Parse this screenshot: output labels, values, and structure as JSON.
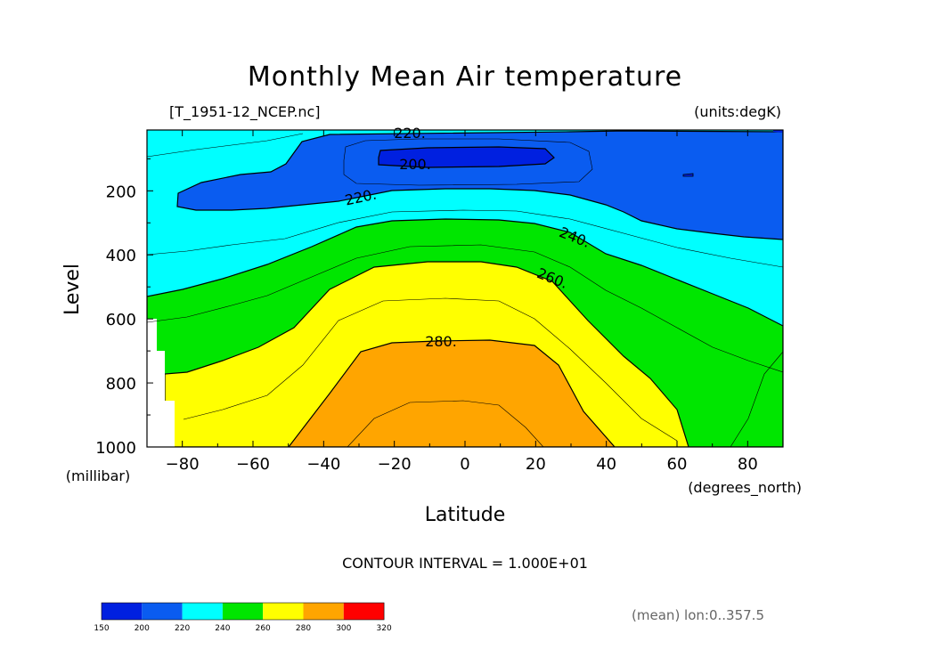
{
  "chart_data": {
    "type": "contour",
    "title": "Monthly Mean Air temperature",
    "file_label": "[T_1951-12_NCEP.nc]",
    "units_label": "(units:degK)",
    "xlabel": "Latitude",
    "xunits": "(degrees_north)",
    "ylabel": "Level",
    "yunits": "(millibar)",
    "xlim": [
      -90,
      90
    ],
    "ylim": [
      1000,
      10
    ],
    "x_ticks": [
      -80,
      -60,
      -40,
      -20,
      0,
      20,
      40,
      60,
      80
    ],
    "x_tick_labels": [
      "−80",
      "−60",
      "−40",
      "−20",
      "0",
      "20",
      "40",
      "60",
      "80"
    ],
    "y_ticks": [
      200,
      400,
      600,
      800,
      1000
    ],
    "y_tick_labels": [
      "200",
      "400",
      "600",
      "800",
      "1000"
    ],
    "contour_interval_text": "CONTOUR INTERVAL = 1.000E+01",
    "contour_interval": 10,
    "contour_labels": [
      "220.",
      "200.",
      "220.",
      "240.",
      "260.",
      "280."
    ],
    "color_levels": [
      150,
      200,
      220,
      240,
      260,
      280,
      300,
      320
    ],
    "color_level_labels": [
      "150",
      "200",
      "220",
      "240",
      "260",
      "280",
      "300",
      "320"
    ],
    "colors": [
      "#0020e0",
      "#0a5cf0",
      "#00ffff",
      "#00e600",
      "#ffff00",
      "#ffa500",
      "#ff0000"
    ],
    "contours": [
      {
        "level": 200,
        "points": [
          [
            -24,
            80
          ],
          [
            -20,
            70
          ],
          [
            -10,
            66
          ],
          [
            0,
            66
          ],
          [
            10,
            66
          ],
          [
            20,
            70
          ],
          [
            25,
            82
          ],
          [
            20,
            110
          ],
          [
            10,
            118
          ],
          [
            -10,
            118
          ],
          [
            -24,
            103
          ],
          [
            -24,
            80
          ]
        ]
      },
      {
        "level": 210,
        "points": [
          [
            -35,
            85
          ],
          [
            -33,
            55
          ],
          [
            -20,
            45
          ],
          [
            0,
            42
          ],
          [
            20,
            45
          ],
          [
            36,
            55
          ],
          [
            40,
            95
          ],
          [
            35,
            140
          ],
          [
            20,
            150
          ],
          [
            0,
            152
          ],
          [
            -20,
            150
          ],
          [
            -34,
            140
          ],
          [
            -35,
            85
          ]
        ]
      },
      {
        "level": 220,
        "points": [
          [
            -90,
            330
          ],
          [
            -80,
            285
          ],
          [
            -60,
            262
          ],
          [
            -40,
            250
          ],
          [
            -20,
            212
          ],
          [
            0,
            200
          ],
          [
            20,
            200
          ],
          [
            40,
            212
          ],
          [
            60,
            252
          ],
          [
            80,
            310
          ],
          [
            90,
            345
          ]
        ]
      },
      {
        "level": 230,
        "points": [
          [
            -90,
            410
          ],
          [
            -80,
            388
          ],
          [
            -60,
            360
          ],
          [
            -40,
            333
          ],
          [
            -20,
            308
          ],
          [
            0,
            302
          ],
          [
            20,
            305
          ],
          [
            40,
            332
          ],
          [
            60,
            385
          ],
          [
            80,
            415
          ],
          [
            90,
            435
          ]
        ]
      },
      {
        "level": 240,
        "points": [
          [
            -90,
            530
          ],
          [
            -80,
            505
          ],
          [
            -60,
            467
          ],
          [
            -40,
            405
          ],
          [
            -20,
            355
          ],
          [
            0,
            285
          ],
          [
            20,
            290
          ],
          [
            32,
            315
          ],
          [
            50,
            400
          ],
          [
            70,
            500
          ],
          [
            90,
            595
          ]
        ]
      },
      {
        "level": 250,
        "points": [
          [
            -90,
            610
          ],
          [
            -80,
            600
          ],
          [
            -60,
            535
          ],
          [
            -40,
            478
          ],
          [
            -20,
            395
          ],
          [
            0,
            365
          ],
          [
            20,
            370
          ],
          [
            35,
            410
          ],
          [
            50,
            505
          ],
          [
            70,
            620
          ],
          [
            90,
            660
          ]
        ]
      },
      {
        "level": 260,
        "points": [
          [
            -90,
            720
          ],
          [
            -80,
            705
          ],
          [
            -60,
            665
          ],
          [
            -43,
            570
          ],
          [
            -30,
            460
          ],
          [
            -10,
            420
          ],
          [
            10,
            420
          ],
          [
            25,
            440
          ],
          [
            45,
            565
          ],
          [
            60,
            695
          ],
          [
            70,
            770
          ],
          [
            90,
            920
          ]
        ]
      },
      {
        "level": 270,
        "points": [
          [
            -90,
            880
          ],
          [
            -75,
            855
          ],
          [
            -60,
            830
          ],
          [
            -40,
            725
          ],
          [
            -25,
            610
          ],
          [
            -10,
            570
          ],
          [
            10,
            570
          ],
          [
            28,
            610
          ],
          [
            40,
            720
          ],
          [
            60,
            860
          ],
          [
            65,
            940
          ],
          [
            75,
            980
          ]
        ]
      },
      {
        "level": 280,
        "points": [
          [
            -50,
            1000
          ],
          [
            -40,
            905
          ],
          [
            -30,
            770
          ],
          [
            -20,
            700
          ],
          [
            -10,
            680
          ],
          [
            10,
            680
          ],
          [
            30,
            710
          ],
          [
            38,
            830
          ],
          [
            43,
            1000
          ]
        ]
      },
      {
        "level": 290,
        "points": [
          [
            -30,
            1000
          ],
          [
            -20,
            910
          ],
          [
            -10,
            860
          ],
          [
            10,
            865
          ],
          [
            20,
            880
          ],
          [
            30,
            1000
          ]
        ]
      }
    ]
  },
  "footnote": "(mean) lon:0..357.5"
}
